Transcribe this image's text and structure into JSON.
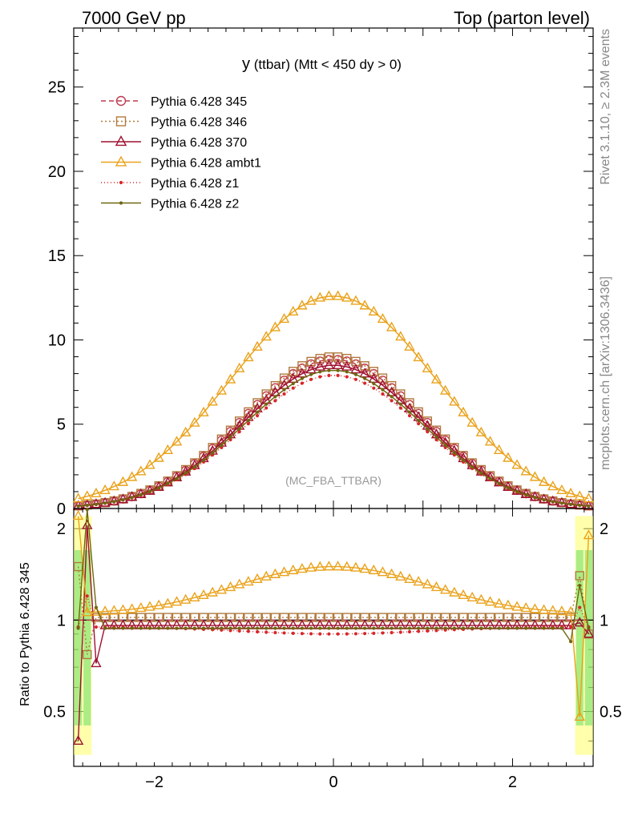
{
  "header": {
    "left": "7000 GeV pp",
    "right": "Top (parton level)"
  },
  "side": {
    "rivet": "Rivet 3.1.10, ≥ 2.3M events",
    "mcplots": "mcplots.cern.ch [arXiv:1306.3436]"
  },
  "chart_data": {
    "type": "line",
    "title": "y (ttbar) (Mtt < 450 dy > 0)",
    "title_main": "y",
    "title_rest": " (ttbar) (Mtt < 450 dy > 0)",
    "watermark": "(MC_FBA_TTBAR)",
    "xlim": [
      -2.9,
      2.9
    ],
    "main_ylim": [
      0,
      28.5
    ],
    "main_yticks": [
      {
        "v": 0,
        "label": "0"
      },
      {
        "v": 5,
        "label": "5"
      },
      {
        "v": 10,
        "label": "10"
      },
      {
        "v": 15,
        "label": "15"
      },
      {
        "v": 20,
        "label": "20"
      },
      {
        "v": 25,
        "label": "25"
      }
    ],
    "ratio_ylabel": "Ratio to Pythia 6.428 345",
    "ratio_ylim": [
      0.33,
      2.33
    ],
    "ratio_log": true,
    "ratio_yticks": [
      {
        "v": 0.5,
        "label": "0.5"
      },
      {
        "v": 1,
        "label": "1"
      },
      {
        "v": 2,
        "label": "2"
      }
    ],
    "xticks": [
      {
        "v": -2,
        "label": "−2"
      },
      {
        "v": 0,
        "label": "0"
      },
      {
        "v": 2,
        "label": "2"
      }
    ],
    "legend_position": "top-left",
    "series": [
      {
        "name": "Pythia 6.428 345",
        "color": "#c0394d",
        "marker": "circle",
        "dash": "6,4",
        "peak": 8.85,
        "width": 1.0,
        "ratio_center": 1.0,
        "ratio_edge": 1.0
      },
      {
        "name": "Pythia 6.428 346",
        "color": "#b07a3e",
        "marker": "square",
        "dash": "2,3",
        "peak": 9.0,
        "width": 1.0,
        "ratio_center": 1.02,
        "ratio_edge": 1.02
      },
      {
        "name": "Pythia 6.428 370",
        "color": "#9e1030",
        "marker": "triangle",
        "dash": "",
        "peak": 8.5,
        "width": 1.0,
        "ratio_center": 0.96,
        "ratio_edge": 0.96
      },
      {
        "name": "Pythia 6.428 ambt1",
        "color": "#eaa21b",
        "marker": "triangle",
        "dash": "",
        "peak": 12.6,
        "width": 1.15,
        "ratio_center": 1.5,
        "ratio_edge": 1.05
      },
      {
        "name": "Pythia 6.428 z1",
        "color": "#d8262a",
        "marker": "dot",
        "dash": "1,3",
        "peak": 7.9,
        "width": 1.0,
        "ratio_center": 0.9,
        "ratio_edge": 0.95
      },
      {
        "name": "Pythia 6.428 z2",
        "color": "#6e6610",
        "marker": "dot",
        "dash": "",
        "peak": 8.2,
        "width": 1.0,
        "ratio_center": 0.94,
        "ratio_edge": 0.94
      }
    ]
  }
}
